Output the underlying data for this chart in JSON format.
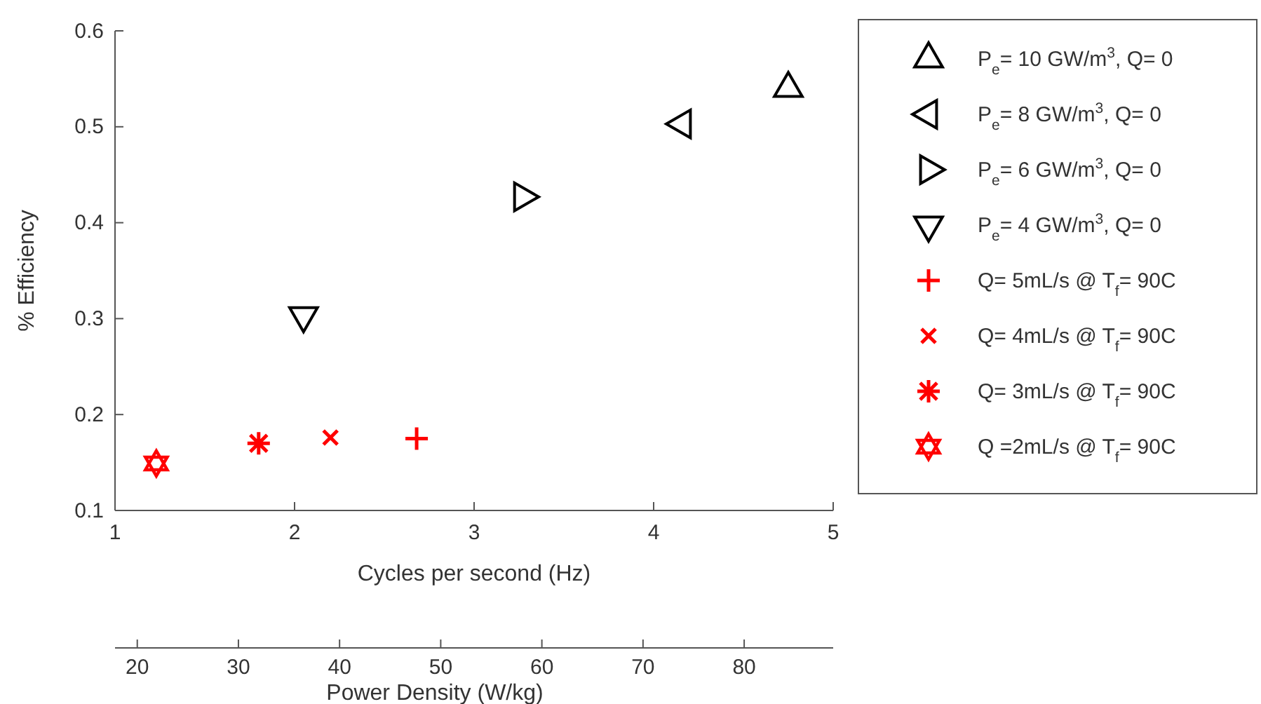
{
  "chart_data": {
    "type": "scatter",
    "xlabel": "Cycles per second (Hz)",
    "ylabel": "% Efficiency",
    "x2label": "Power Density (W/kg)",
    "xlim": [
      1,
      5
    ],
    "xticks": [
      1,
      2,
      3,
      4,
      5
    ],
    "ylim": [
      0.1,
      0.6
    ],
    "yticks": [
      0.1,
      0.2,
      0.3,
      0.4,
      0.5,
      0.6
    ],
    "x2lim": [
      17.8,
      88.8
    ],
    "x2ticks": [
      20,
      30,
      40,
      50,
      60,
      70,
      80
    ],
    "grid": false,
    "legend": "right",
    "series": [
      {
        "name": "P$_{e}$= 10 GW/m$^{3}$, Q= 0",
        "color": "#000000",
        "marker": "triangle",
        "x": [
          4.75
        ],
        "values": [
          0.54
        ]
      },
      {
        "name": "P$_{e}$= 8 GW/m$^{3}$, Q= 0",
        "color": "#000000",
        "marker": "triangle-left",
        "x": [
          4.16
        ],
        "values": [
          0.503
        ]
      },
      {
        "name": "P$_{e}$= 6 GW/m$^{3}$, Q= 0",
        "color": "#000000",
        "marker": "triangle-right",
        "x": [
          3.27
        ],
        "values": [
          0.427
        ]
      },
      {
        "name": "P$_{e}$= 4 GW/m$^{3}$, Q= 0",
        "color": "#000000",
        "marker": "triangle-down",
        "x": [
          2.05
        ],
        "values": [
          0.303
        ]
      },
      {
        "name": "Q= 5mL/s @ T$_{f}$= 90C",
        "color": "#ff0000",
        "marker": "plus",
        "x": [
          2.68
        ],
        "values": [
          0.175
        ]
      },
      {
        "name": "Q= 4mL/s @ T$_{f}$= 90C",
        "color": "#ff0000",
        "marker": "cross",
        "x": [
          2.2
        ],
        "values": [
          0.176
        ]
      },
      {
        "name": "Q= 3mL/s @ T$_{f}$= 90C",
        "color": "#ff0000",
        "marker": "cross-asterisk",
        "x": [
          1.8
        ],
        "values": [
          0.17
        ]
      },
      {
        "name": "Q =2mL/s @ T$_{f}$= 90C",
        "color": "#ff0000",
        "marker": "star-hexagram",
        "x": [
          1.23
        ],
        "values": [
          0.149
        ]
      }
    ]
  }
}
